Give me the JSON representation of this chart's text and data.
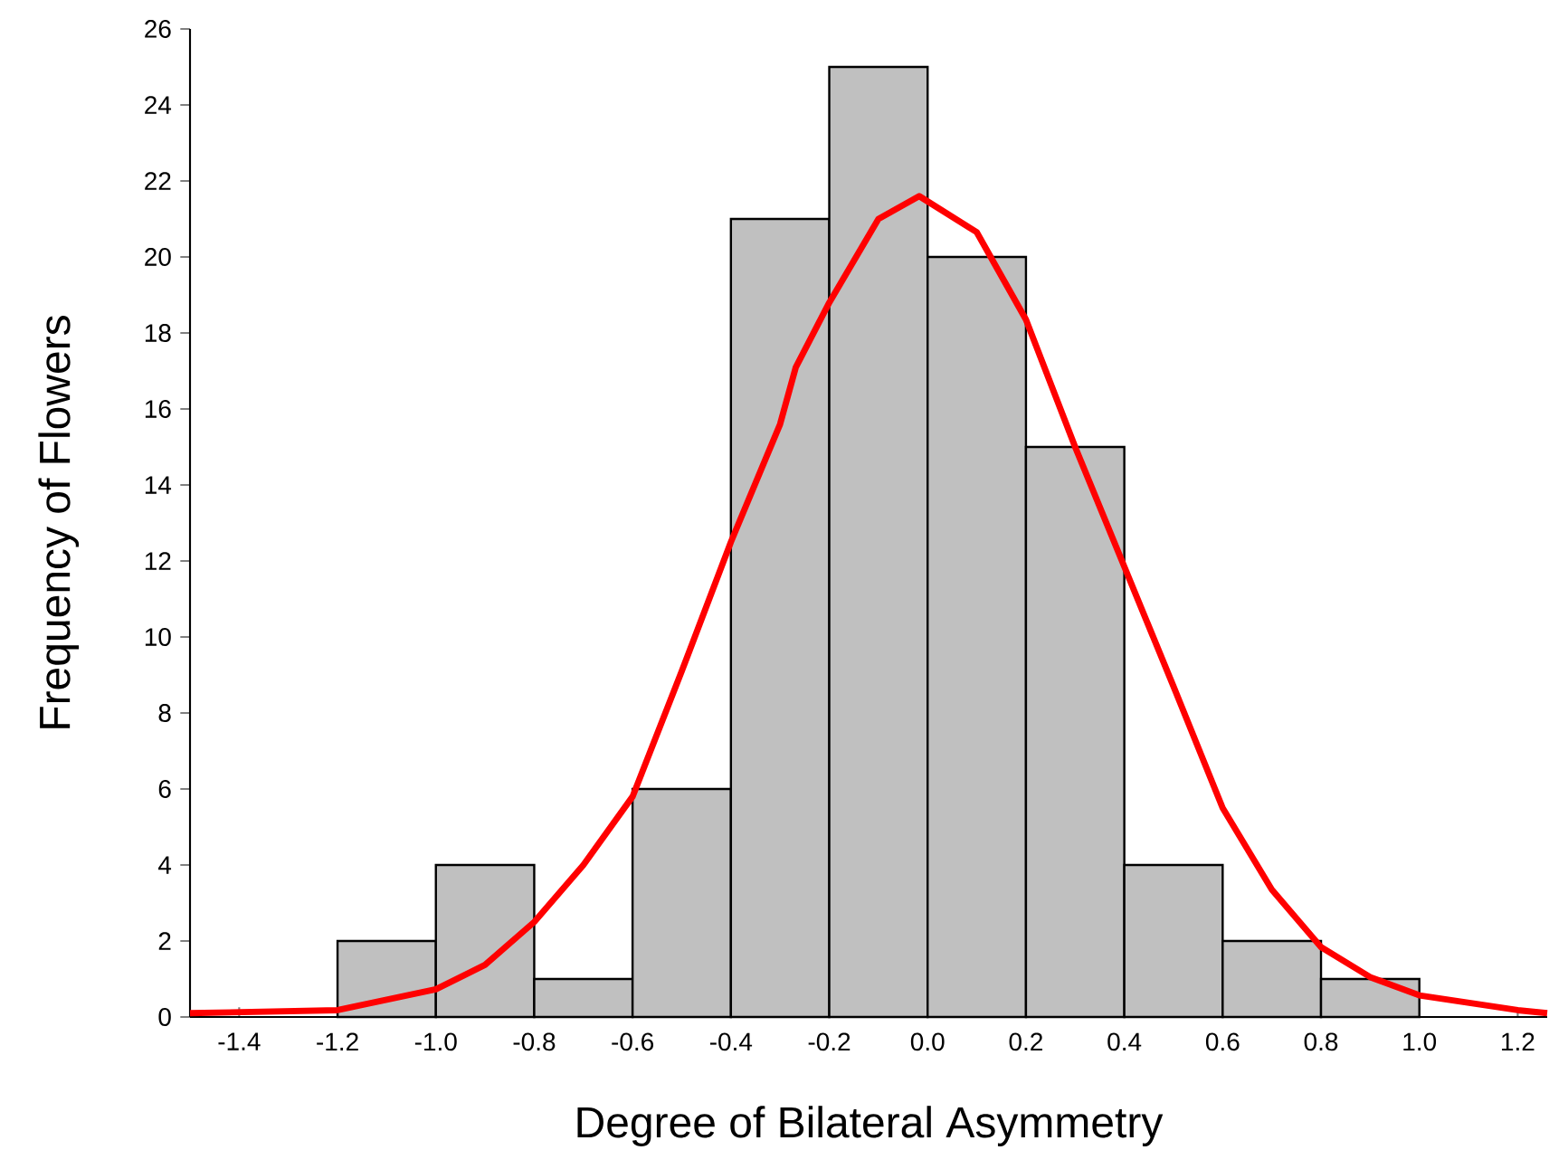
{
  "chart_data": {
    "type": "histogram",
    "xlabel": "Degree of Bilateral Asymmetry",
    "ylabel": "Frequency of Flowers",
    "bins": [
      -1.2,
      -1.0,
      -0.8,
      -0.6,
      -0.4,
      -0.2,
      0.0,
      0.2,
      0.4,
      0.6,
      0.8,
      1.0
    ],
    "values": [
      2,
      4,
      1,
      6,
      21,
      25,
      20,
      15,
      4,
      2,
      1
    ],
    "color": "#c0c0c0",
    "series": [
      {
        "type": "line",
        "color": "#ff0000",
        "x": [
          -1.5,
          -1.2,
          -1.0,
          -0.9,
          -0.8,
          -0.7,
          -0.6,
          -0.5,
          -0.4,
          -0.3,
          -0.268,
          -0.2,
          -0.1,
          -0.017,
          0.1,
          0.2,
          0.3,
          0.4,
          0.5,
          0.6,
          0.7,
          0.8,
          0.9,
          1.0,
          1.2,
          1.26
        ],
        "values": [
          0.1,
          0.18,
          0.73,
          1.37,
          2.5,
          4.0,
          5.8,
          9.1,
          12.5,
          15.6,
          17.1,
          18.8,
          21.0,
          21.6,
          20.65,
          18.35,
          15.0,
          11.85,
          8.7,
          5.5,
          3.35,
          1.84,
          1.05,
          0.57,
          0.18,
          0.1
        ]
      }
    ],
    "xlim": [
      -1.5,
      1.26
    ],
    "ylim": [
      0,
      26
    ],
    "xticks": [
      {
        "value": -1.4,
        "label": "-1.4"
      },
      {
        "value": -1.2,
        "label": "-1.2"
      },
      {
        "value": -1.0,
        "label": "-1.0"
      },
      {
        "value": -0.8,
        "label": "-0.8"
      },
      {
        "value": -0.6,
        "label": "-0.6"
      },
      {
        "value": -0.4,
        "label": "-0.4"
      },
      {
        "value": -0.2,
        "label": "-0.2"
      },
      {
        "value": 0.0,
        "label": "0.0"
      },
      {
        "value": 0.2,
        "label": "0.2"
      },
      {
        "value": 0.4,
        "label": "0.4"
      },
      {
        "value": 0.6,
        "label": "0.6"
      },
      {
        "value": 0.8,
        "label": "0.8"
      },
      {
        "value": 1.0,
        "label": "1.0"
      },
      {
        "value": 1.2,
        "label": "1.2"
      }
    ],
    "yticks": [
      0,
      2,
      4,
      6,
      8,
      10,
      12,
      14,
      16,
      18,
      20,
      22,
      24,
      26
    ],
    "grid": false
  }
}
